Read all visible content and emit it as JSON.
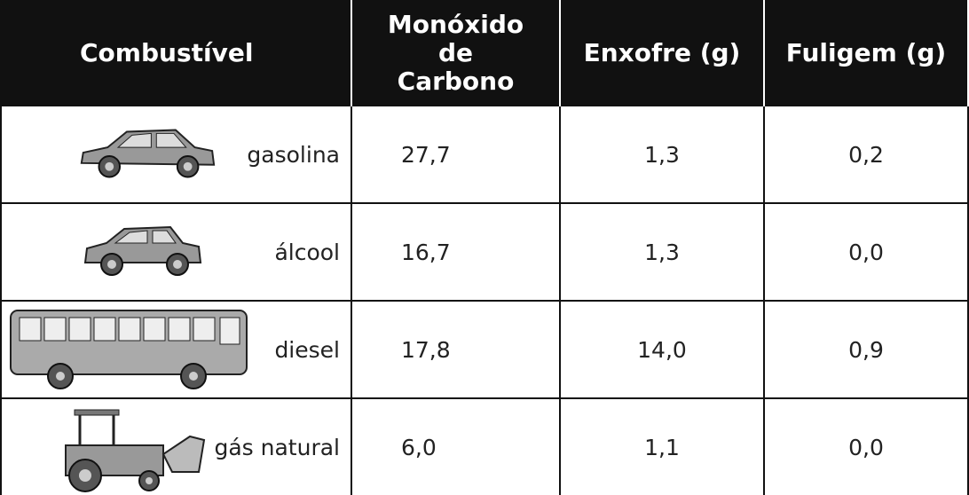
{
  "table": {
    "header": [
      "Combustível",
      "Monóxido de Carbono",
      "Enxofre (g)",
      "Fuligem (g)"
    ],
    "rows": [
      [
        "gasolina",
        "27,7",
        "1,3",
        "0,2"
      ],
      [
        "álcool",
        "16,7",
        "1,3",
        "0,0"
      ],
      [
        "diesel",
        "17,8",
        "14,0",
        "0,9"
      ],
      [
        "gás natural",
        "6,0",
        "1,1",
        "0,0"
      ]
    ]
  }
}
